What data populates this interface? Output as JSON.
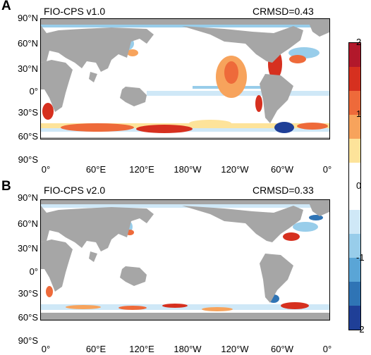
{
  "panels": [
    {
      "letter": "A",
      "model": "FIO-CPS v1.0",
      "crmsd": "CRMSD=0.43"
    },
    {
      "letter": "B",
      "model": "FIO-CPS v2.0",
      "crmsd": "CRMSD=0.33"
    }
  ],
  "axes": {
    "lat_labels": [
      "90°N",
      "60°N",
      "30°N",
      "0°",
      "30°S",
      "60°S",
      "90°S"
    ],
    "lon_labels": [
      "0°",
      "60°E",
      "120°E",
      "180°W",
      "120°W",
      "60°W",
      "0°"
    ]
  },
  "colorbar": {
    "tick_labels": [
      "2",
      "1",
      "0",
      "-1",
      "-2"
    ],
    "colors": [
      "#b2182b",
      "#d6301f",
      "#ee6a3a",
      "#f7a35c",
      "#fde39a",
      "#ffffff",
      "#ffffff",
      "#cfe8f7",
      "#98cdea",
      "#5aa5d6",
      "#2f74b5",
      "#1f3f97"
    ],
    "land_color": "#a6a6a6"
  }
}
